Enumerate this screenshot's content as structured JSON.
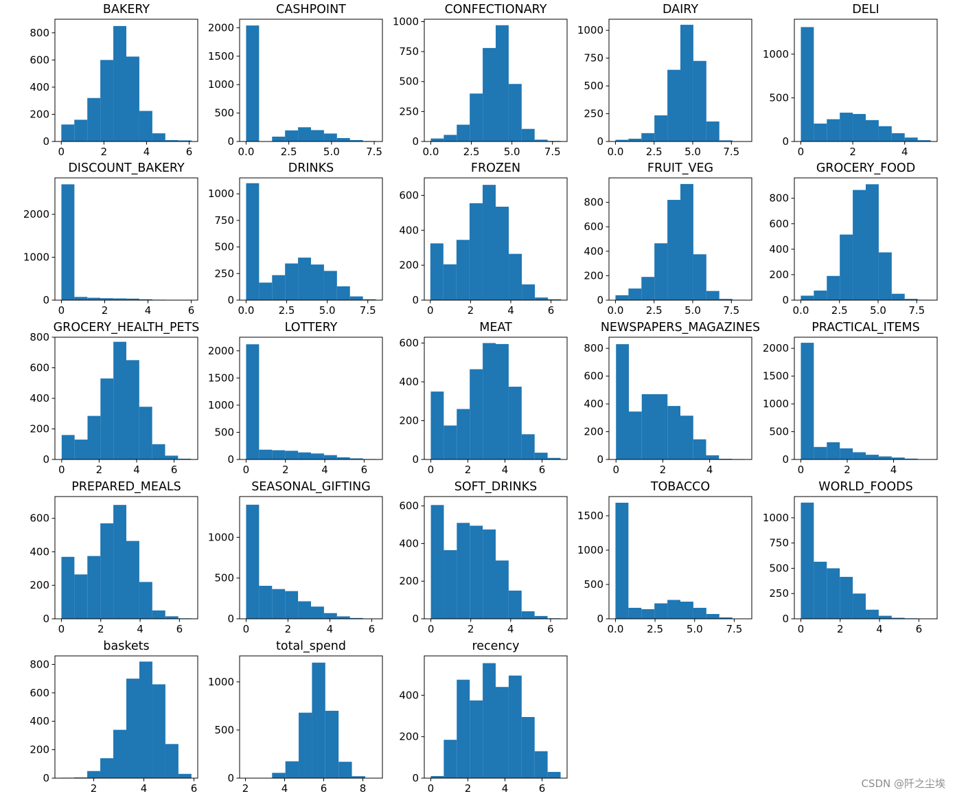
{
  "watermark": "CSDN @阡之尘埃",
  "colors": {
    "bar": "#1f77b4",
    "axis": "#000000",
    "background": "#ffffff"
  },
  "chart_data": [
    {
      "type": "bar",
      "title": "BAKERY",
      "xlim": [
        -0.3,
        6.4
      ],
      "ylim": [
        0,
        900
      ],
      "bin_edges": [
        0,
        0.61,
        1.22,
        1.83,
        2.44,
        3.05,
        3.66,
        4.27,
        4.88,
        5.49,
        6.1
      ],
      "values": [
        125,
        160,
        320,
        600,
        850,
        625,
        225,
        60,
        10,
        8
      ],
      "xticks": [
        0,
        2,
        4,
        6
      ],
      "xtick_labels": [
        "0",
        "2",
        "4",
        "6"
      ],
      "yticks": [
        0,
        200,
        400,
        600,
        800
      ],
      "ytick_labels": [
        "0",
        "200",
        "400",
        "600",
        "800"
      ]
    },
    {
      "type": "bar",
      "title": "CASHPOINT",
      "xlim": [
        -0.38,
        7.98
      ],
      "ylim": [
        0,
        2150
      ],
      "bin_edges": [
        0,
        0.76,
        1.52,
        2.28,
        3.04,
        3.8,
        4.56,
        5.32,
        6.08,
        6.84,
        7.6
      ],
      "values": [
        2040,
        0,
        85,
        195,
        250,
        200,
        140,
        60,
        25,
        8
      ],
      "xticks": [
        0,
        2.5,
        5,
        7.5
      ],
      "xtick_labels": [
        "0.0",
        "2.5",
        "5.0",
        "7.5"
      ],
      "yticks": [
        0,
        500,
        1000,
        1500,
        2000
      ],
      "ytick_labels": [
        "0",
        "500",
        "1000",
        "1500",
        "2000"
      ]
    },
    {
      "type": "bar",
      "title": "CONFECTIONARY",
      "xlim": [
        -0.4,
        8.4
      ],
      "ylim": [
        0,
        1020
      ],
      "bin_edges": [
        0,
        0.8,
        1.6,
        2.4,
        3.2,
        4.0,
        4.8,
        5.6,
        6.4,
        7.2,
        8.0
      ],
      "values": [
        25,
        55,
        140,
        400,
        780,
        970,
        480,
        105,
        15,
        5
      ],
      "xticks": [
        0,
        2.5,
        5,
        7.5
      ],
      "xtick_labels": [
        "0.0",
        "2.5",
        "5.0",
        "7.5"
      ],
      "yticks": [
        0,
        250,
        500,
        750,
        1000
      ],
      "ytick_labels": [
        "0",
        "250",
        "500",
        "750",
        "1000"
      ]
    },
    {
      "type": "bar",
      "title": "DAIRY",
      "xlim": [
        -0.42,
        8.82
      ],
      "ylim": [
        0,
        1100
      ],
      "bin_edges": [
        0,
        0.84,
        1.68,
        2.52,
        3.36,
        4.2,
        5.04,
        5.88,
        6.72,
        7.56,
        8.4
      ],
      "values": [
        15,
        25,
        75,
        235,
        645,
        1050,
        725,
        180,
        10,
        2
      ],
      "xticks": [
        0,
        2.5,
        5,
        7.5
      ],
      "xtick_labels": [
        "0.0",
        "2.5",
        "5.0",
        "7.5"
      ],
      "yticks": [
        0,
        250,
        500,
        750,
        1000
      ],
      "ytick_labels": [
        "0",
        "250",
        "500",
        "750",
        "1000"
      ]
    },
    {
      "type": "bar",
      "title": "DELI",
      "xlim": [
        -0.25,
        5.25
      ],
      "ylim": [
        0,
        1400
      ],
      "bin_edges": [
        0,
        0.5,
        1.0,
        1.5,
        2.0,
        2.5,
        3.0,
        3.5,
        4.0,
        4.5,
        5.0
      ],
      "values": [
        1310,
        205,
        255,
        330,
        315,
        245,
        175,
        95,
        45,
        15
      ],
      "xticks": [
        0,
        2,
        4
      ],
      "xtick_labels": [
        "0",
        "2",
        "4"
      ],
      "yticks": [
        0,
        500,
        1000
      ],
      "ytick_labels": [
        "0",
        "500",
        "1000"
      ]
    },
    {
      "type": "bar",
      "title": "DISCOUNT_BAKERY",
      "xlim": [
        -0.3,
        6.3
      ],
      "ylim": [
        0,
        2850
      ],
      "bin_edges": [
        0,
        0.6,
        1.2,
        1.8,
        2.4,
        3.0,
        3.6,
        4.2,
        4.8,
        5.4,
        6.0
      ],
      "values": [
        2700,
        75,
        55,
        45,
        40,
        35,
        20,
        10,
        5,
        3
      ],
      "xticks": [
        0,
        2,
        4,
        6
      ],
      "xtick_labels": [
        "0",
        "2",
        "4",
        "6"
      ],
      "yticks": [
        0,
        1000,
        2000
      ],
      "ytick_labels": [
        "0",
        "1000",
        "2000"
      ]
    },
    {
      "type": "bar",
      "title": "DRINKS",
      "xlim": [
        -0.4,
        8.4
      ],
      "ylim": [
        0,
        1150
      ],
      "bin_edges": [
        0,
        0.8,
        1.6,
        2.4,
        3.2,
        4.0,
        4.8,
        5.6,
        6.4,
        7.2,
        8.0
      ],
      "values": [
        1100,
        165,
        235,
        345,
        400,
        335,
        275,
        130,
        35,
        8
      ],
      "xticks": [
        0,
        2.5,
        5,
        7.5
      ],
      "xtick_labels": [
        "0.0",
        "2.5",
        "5.0",
        "7.5"
      ],
      "yticks": [
        0,
        250,
        500,
        750,
        1000
      ],
      "ytick_labels": [
        "0",
        "250",
        "500",
        "750",
        "1000"
      ]
    },
    {
      "type": "bar",
      "title": "FROZEN",
      "xlim": [
        -0.3,
        6.8
      ],
      "ylim": [
        0,
        700
      ],
      "bin_edges": [
        0,
        0.65,
        1.3,
        1.95,
        2.6,
        3.25,
        3.9,
        4.55,
        5.2,
        5.85,
        6.5
      ],
      "values": [
        325,
        205,
        345,
        555,
        660,
        535,
        265,
        90,
        15,
        5
      ],
      "xticks": [
        0,
        2,
        4,
        6
      ],
      "xtick_labels": [
        "0",
        "2",
        "4",
        "6"
      ],
      "yticks": [
        0,
        200,
        400,
        600
      ],
      "ytick_labels": [
        "0",
        "200",
        "400",
        "600"
      ]
    },
    {
      "type": "bar",
      "title": "FRUIT_VEG",
      "xlim": [
        -0.42,
        8.82
      ],
      "ylim": [
        0,
        1000
      ],
      "bin_edges": [
        0,
        0.84,
        1.68,
        2.52,
        3.36,
        4.2,
        5.04,
        5.88,
        6.72,
        7.56,
        8.4
      ],
      "values": [
        40,
        95,
        190,
        465,
        820,
        950,
        375,
        75,
        10,
        3
      ],
      "xticks": [
        0,
        2.5,
        5,
        7.5
      ],
      "xtick_labels": [
        "0.0",
        "2.5",
        "5.0",
        "7.5"
      ],
      "yticks": [
        0,
        200,
        400,
        600,
        800
      ],
      "ytick_labels": [
        "0",
        "200",
        "400",
        "600",
        "800"
      ]
    },
    {
      "type": "bar",
      "title": "GROCERY_FOOD",
      "xlim": [
        -0.42,
        8.82
      ],
      "ylim": [
        0,
        960
      ],
      "bin_edges": [
        0,
        0.84,
        1.68,
        2.52,
        3.36,
        4.2,
        5.04,
        5.88,
        6.72,
        7.56,
        8.4
      ],
      "values": [
        35,
        75,
        190,
        515,
        865,
        910,
        375,
        50,
        10,
        3
      ],
      "xticks": [
        0,
        2.5,
        5,
        7.5
      ],
      "xtick_labels": [
        "0.0",
        "2.5",
        "5.0",
        "7.5"
      ],
      "yticks": [
        0,
        200,
        400,
        600,
        800
      ],
      "ytick_labels": [
        "0",
        "200",
        "400",
        "600",
        "800"
      ]
    },
    {
      "type": "bar",
      "title": "GROCERY_HEALTH_PETS",
      "xlim": [
        -0.36,
        7.26
      ],
      "ylim": [
        0,
        800
      ],
      "bin_edges": [
        0,
        0.69,
        1.38,
        2.07,
        2.76,
        3.45,
        4.14,
        4.83,
        5.52,
        6.21,
        6.9
      ],
      "values": [
        160,
        130,
        285,
        530,
        770,
        650,
        345,
        100,
        25,
        5
      ],
      "xticks": [
        0,
        2,
        4,
        6
      ],
      "xtick_labels": [
        "0",
        "2",
        "4",
        "6"
      ],
      "yticks": [
        0,
        200,
        400,
        600,
        800
      ],
      "ytick_labels": [
        "0",
        "200",
        "400",
        "600",
        "800"
      ]
    },
    {
      "type": "bar",
      "title": "LOTTERY",
      "xlim": [
        -0.33,
        6.93
      ],
      "ylim": [
        0,
        2250
      ],
      "bin_edges": [
        0,
        0.66,
        1.32,
        1.98,
        2.64,
        3.3,
        3.96,
        4.62,
        5.28,
        5.94,
        6.6
      ],
      "values": [
        2120,
        180,
        170,
        160,
        130,
        110,
        80,
        40,
        20,
        8
      ],
      "xticks": [
        0,
        2,
        4,
        6
      ],
      "xtick_labels": [
        "0",
        "2",
        "4",
        "6"
      ],
      "yticks": [
        0,
        500,
        1000,
        1500,
        2000
      ],
      "ytick_labels": [
        "0",
        "500",
        "1000",
        "1500",
        "2000"
      ]
    },
    {
      "type": "bar",
      "title": "MEAT",
      "xlim": [
        -0.35,
        7.35
      ],
      "ylim": [
        0,
        630
      ],
      "bin_edges": [
        0,
        0.7,
        1.4,
        2.1,
        2.8,
        3.5,
        4.2,
        4.9,
        5.6,
        6.3,
        7.0
      ],
      "values": [
        350,
        175,
        260,
        465,
        600,
        595,
        375,
        130,
        35,
        8
      ],
      "xticks": [
        0,
        2,
        4,
        6
      ],
      "xtick_labels": [
        "0",
        "2",
        "4",
        "6"
      ],
      "yticks": [
        0,
        200,
        400,
        600
      ],
      "ytick_labels": [
        "0",
        "200",
        "400",
        "600"
      ]
    },
    {
      "type": "bar",
      "title": "NEWSPAPERS_MAGAZINES",
      "xlim": [
        -0.3,
        5.8
      ],
      "ylim": [
        0,
        880
      ],
      "bin_edges": [
        0,
        0.55,
        1.1,
        1.65,
        2.2,
        2.75,
        3.3,
        3.85,
        4.4,
        4.95,
        5.5
      ],
      "values": [
        830,
        345,
        470,
        470,
        385,
        315,
        145,
        30,
        5,
        3
      ],
      "xticks": [
        0,
        2,
        4
      ],
      "xtick_labels": [
        "0",
        "2",
        "4"
      ],
      "yticks": [
        0,
        200,
        400,
        600,
        800
      ],
      "ytick_labels": [
        "0",
        "200",
        "400",
        "600",
        "800"
      ]
    },
    {
      "type": "bar",
      "title": "PRACTICAL_ITEMS",
      "xlim": [
        -0.28,
        5.88
      ],
      "ylim": [
        0,
        2200
      ],
      "bin_edges": [
        0,
        0.56,
        1.12,
        1.68,
        2.24,
        2.8,
        3.36,
        3.92,
        4.48,
        5.04,
        5.6
      ],
      "values": [
        2100,
        225,
        310,
        200,
        130,
        85,
        55,
        35,
        15,
        5
      ],
      "xticks": [
        0,
        2,
        4
      ],
      "xtick_labels": [
        "0",
        "2",
        "4"
      ],
      "yticks": [
        0,
        500,
        1000,
        1500,
        2000
      ],
      "ytick_labels": [
        "0",
        "500",
        "1000",
        "1500",
        "2000"
      ]
    },
    {
      "type": "bar",
      "title": "PREPARED_MEALS",
      "xlim": [
        -0.33,
        6.93
      ],
      "ylim": [
        0,
        730
      ],
      "bin_edges": [
        0,
        0.66,
        1.32,
        1.98,
        2.64,
        3.3,
        3.96,
        4.62,
        5.28,
        5.94,
        6.6
      ],
      "values": [
        370,
        265,
        375,
        570,
        680,
        465,
        220,
        50,
        15,
        3
      ],
      "xticks": [
        0,
        2,
        4,
        6
      ],
      "xtick_labels": [
        "0",
        "2",
        "4",
        "6"
      ],
      "yticks": [
        0,
        200,
        400,
        600
      ],
      "ytick_labels": [
        "0",
        "200",
        "400",
        "600"
      ]
    },
    {
      "type": "bar",
      "title": "SEASONAL_GIFTING",
      "xlim": [
        -0.31,
        6.51
      ],
      "ylim": [
        0,
        1500
      ],
      "bin_edges": [
        0,
        0.62,
        1.24,
        1.86,
        2.48,
        3.1,
        3.72,
        4.34,
        4.96,
        5.58,
        6.2
      ],
      "values": [
        1400,
        405,
        365,
        340,
        215,
        150,
        70,
        30,
        10,
        3
      ],
      "xticks": [
        0,
        2,
        4,
        6
      ],
      "xtick_labels": [
        "0",
        "2",
        "4",
        "6"
      ],
      "yticks": [
        0,
        500,
        1000
      ],
      "ytick_labels": [
        "0",
        "500",
        "1000"
      ]
    },
    {
      "type": "bar",
      "title": "SOFT_DRINKS",
      "xlim": [
        -0.33,
        6.83
      ],
      "ylim": [
        0,
        650
      ],
      "bin_edges": [
        0,
        0.65,
        1.3,
        1.95,
        2.6,
        3.25,
        3.9,
        4.55,
        5.2,
        5.85,
        6.5
      ],
      "values": [
        605,
        365,
        510,
        495,
        475,
        310,
        150,
        40,
        15,
        3
      ],
      "xticks": [
        0,
        2,
        4,
        6
      ],
      "xtick_labels": [
        "0",
        "2",
        "4",
        "6"
      ],
      "yticks": [
        0,
        200,
        400,
        600
      ],
      "ytick_labels": [
        "0",
        "200",
        "400",
        "600"
      ]
    },
    {
      "type": "bar",
      "title": "TOBACCO",
      "xlim": [
        -0.41,
        8.61
      ],
      "ylim": [
        0,
        1780
      ],
      "bin_edges": [
        0,
        0.82,
        1.64,
        2.46,
        3.28,
        4.1,
        4.92,
        5.74,
        6.56,
        7.38,
        8.2
      ],
      "values": [
        1690,
        160,
        140,
        225,
        275,
        250,
        160,
        70,
        20,
        5
      ],
      "xticks": [
        0,
        2.5,
        5,
        7.5
      ],
      "xtick_labels": [
        "0.0",
        "2.5",
        "5.0",
        "7.5"
      ],
      "yticks": [
        0,
        500,
        1000,
        1500
      ],
      "ytick_labels": [
        "0",
        "500",
        "1000",
        "1500"
      ]
    },
    {
      "type": "bar",
      "title": "WORLD_FOODS",
      "xlim": [
        -0.33,
        6.93
      ],
      "ylim": [
        0,
        1210
      ],
      "bin_edges": [
        0,
        0.66,
        1.32,
        1.98,
        2.64,
        3.3,
        3.96,
        4.62,
        5.28,
        5.94,
        6.6
      ],
      "values": [
        1150,
        565,
        500,
        415,
        250,
        90,
        30,
        10,
        5,
        2
      ],
      "xticks": [
        0,
        2,
        4,
        6
      ],
      "xtick_labels": [
        "0",
        "2",
        "4",
        "6"
      ],
      "yticks": [
        0,
        250,
        500,
        750,
        1000
      ],
      "ytick_labels": [
        "0",
        "250",
        "500",
        "750",
        "1000"
      ]
    },
    {
      "type": "bar",
      "title": "baskets",
      "xlim": [
        0.45,
        6.15
      ],
      "ylim": [
        0,
        860
      ],
      "bin_edges": [
        0.7,
        1.22,
        1.74,
        2.26,
        2.78,
        3.3,
        3.82,
        4.34,
        4.86,
        5.38,
        5.9
      ],
      "values": [
        3,
        5,
        50,
        140,
        340,
        700,
        820,
        660,
        240,
        30
      ],
      "xticks": [
        2,
        4,
        6
      ],
      "xtick_labels": [
        "2",
        "4",
        "6"
      ],
      "yticks": [
        0,
        200,
        400,
        600,
        800
      ],
      "ytick_labels": [
        "0",
        "200",
        "400",
        "600",
        "800"
      ]
    },
    {
      "type": "bar",
      "title": "total_spend",
      "xlim": [
        1.7,
        9.0
      ],
      "ylim": [
        0,
        1270
      ],
      "bin_edges": [
        2.0,
        2.68,
        3.36,
        4.04,
        4.72,
        5.4,
        6.08,
        6.76,
        7.44,
        8.12,
        8.8
      ],
      "values": [
        3,
        3,
        55,
        175,
        680,
        1200,
        700,
        170,
        20,
        3
      ],
      "xticks": [
        2,
        4,
        6,
        8
      ],
      "xtick_labels": [
        "2",
        "4",
        "6",
        "8"
      ],
      "yticks": [
        0,
        500,
        1000
      ],
      "ytick_labels": [
        "0",
        "500",
        "1000"
      ]
    },
    {
      "type": "bar",
      "title": "recency",
      "xlim": [
        -0.35,
        7.35
      ],
      "ylim": [
        0,
        590
      ],
      "bin_edges": [
        0,
        0.7,
        1.4,
        2.1,
        2.8,
        3.5,
        4.2,
        4.9,
        5.6,
        6.3,
        7.0
      ],
      "values": [
        10,
        185,
        475,
        375,
        555,
        440,
        495,
        295,
        130,
        30
      ],
      "xticks": [
        0,
        2,
        4,
        6
      ],
      "xtick_labels": [
        "0",
        "2",
        "4",
        "6"
      ],
      "yticks": [
        0,
        200,
        400
      ],
      "ytick_labels": [
        "0",
        "200",
        "400"
      ]
    }
  ]
}
